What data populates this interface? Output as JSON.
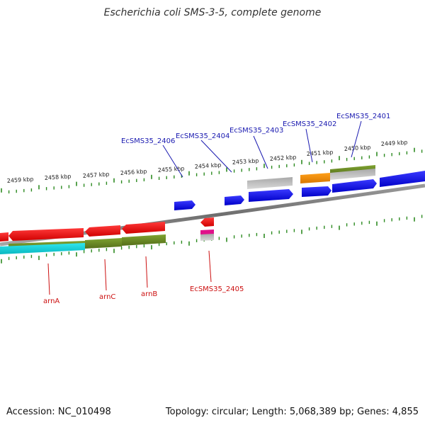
{
  "title": "Escherichia coli SMS-3-5, complete genome",
  "footer": {
    "accession": "Accession: NC_010498",
    "summary": "Topology: circular; Length: 5,068,389 bp; Genes: 4,855"
  },
  "ruler_labels": [
    "2459 kbp",
    "2458 kbp",
    "2457 kbp",
    "2456 kbp",
    "2455 kbp",
    "2454 kbp",
    "2453 kbp",
    "2452 kbp",
    "2451 kbp",
    "2450 kbp",
    "2449 kbp"
  ],
  "gene_labels_top": [
    "EcSMS35_2406",
    "EcSMS35_2404",
    "EcSMS35_2403",
    "EcSMS35_2402",
    "EcSMS35_2401"
  ],
  "gene_labels_bottom": [
    "arnA",
    "arnC",
    "arnB",
    "EcSMS35_2405"
  ],
  "colors": {
    "cds_forward": "#1010e0",
    "cds_reverse": "#e81010",
    "olive": "#6b8e23",
    "cyan": "#11d6de",
    "grey": "#b5b5b5",
    "orange": "#f08c00",
    "magenta": "#e0118a",
    "tick": "#2e8b22",
    "label_blue": "#1a1ab0",
    "label_red": "#cc1010"
  }
}
